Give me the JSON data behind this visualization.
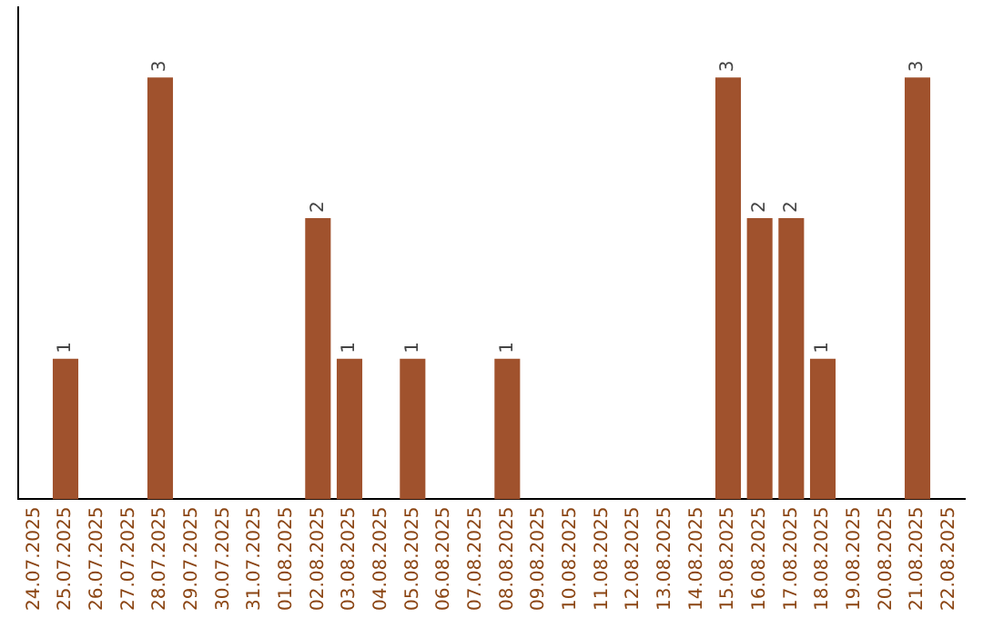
{
  "chart_data": {
    "type": "bar",
    "categories": [
      "24.07.2025",
      "25.07.2025",
      "26.07.2025",
      "27.07.2025",
      "28.07.2025",
      "29.07.2025",
      "30.07.2025",
      "31.07.2025",
      "01.08.2025",
      "02.08.2025",
      "03.08.2025",
      "04.08.2025",
      "05.08.2025",
      "06.08.2025",
      "07.08.2025",
      "08.08.2025",
      "09.08.2025",
      "10.08.2025",
      "11.08.2025",
      "12.08.2025",
      "13.08.2025",
      "14.08.2025",
      "15.08.2025",
      "16.08.2025",
      "17.08.2025",
      "18.08.2025",
      "19.08.2025",
      "20.08.2025",
      "21.08.2025",
      "22.08.2025"
    ],
    "values": [
      0,
      1,
      0,
      0,
      3,
      0,
      0,
      0,
      0,
      2,
      1,
      0,
      1,
      0,
      0,
      1,
      0,
      0,
      0,
      0,
      0,
      0,
      3,
      2,
      2,
      1,
      0,
      0,
      3,
      0
    ],
    "value_labels": [
      null,
      "1",
      null,
      null,
      "3",
      null,
      null,
      null,
      null,
      "2",
      "1",
      null,
      "1",
      null,
      null,
      "1",
      null,
      null,
      null,
      null,
      null,
      null,
      "3",
      "2",
      "2",
      "1",
      null,
      null,
      "3",
      null
    ],
    "color": "#a0522d",
    "tick_labels": "x",
    "grid": false,
    "legend": false
  }
}
